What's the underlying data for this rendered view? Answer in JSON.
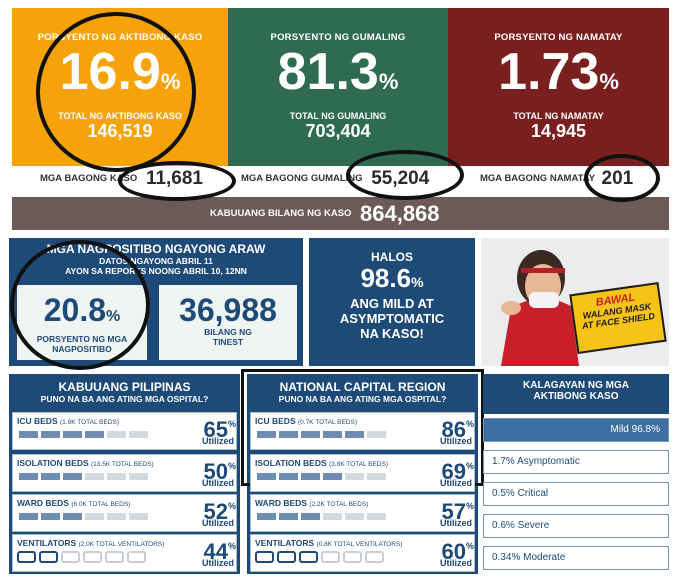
{
  "cards": {
    "active": {
      "label": "PORSYENTO NG AKTIBONG KASO",
      "pct": "16.9",
      "pct_sym": "%",
      "sub": "TOTAL NG AKTIBONG KASO",
      "num": "146,519",
      "color": "#f5a20b"
    },
    "recovered": {
      "label": "PORSYENTO NG GUMALING",
      "pct": "81.3",
      "pct_sym": "%",
      "sub": "TOTAL NG GUMALING",
      "num": "703,404",
      "color": "#2e6b52"
    },
    "deaths": {
      "label": "PORSYENTO NG NAMATAY",
      "pct": "1.73",
      "pct_sym": "%",
      "sub": "TOTAL NG NAMATAY",
      "num": "14,945",
      "color": "#7a1f1f"
    }
  },
  "new": {
    "cases_label": "MGA BAGONG KASO",
    "cases": "11,681",
    "recovered_label": "MGA BAGONG GUMALING",
    "recovered": "55,204",
    "deaths_label": "MGA BAGONG NAMATAY",
    "deaths": "201"
  },
  "total": {
    "label": "KABUUANG BILANG NG KASO",
    "value": "864,868"
  },
  "positivity": {
    "title": "MGA NAGPOSITIBO NGAYONG ARAW",
    "line1": "DATOS NGAYONG ABRIL 11",
    "line2": "AYON SA REPORTS NOONG ABRIL 10, 12NN",
    "rate": "20.8",
    "rate_sym": "%",
    "rate_label1": "PORSYENTO NG MGA",
    "rate_label2": "NAGPOSITIBO",
    "tests": "36,988",
    "tests_label1": "BILANG NG",
    "tests_label2": "TINEST"
  },
  "mild": {
    "l1": "HALOS",
    "value": "98.6",
    "sym": "%",
    "l2": "ANG MILD AT",
    "l3": "ASYMPTOMATIC",
    "l4": "NA KASO!"
  },
  "banner": {
    "l1": "BAWAL",
    "l2": "WALANG MASK",
    "l3": "AT FACE SHIELD"
  },
  "ph": {
    "title": "KABUUANG PILIPINAS",
    "subtitle": "PUNO NA BA ANG ATING MGA OSPITAL?",
    "rows": [
      {
        "name": "ICU BEDS",
        "cap": "(1.9K TOTAL BEDS)",
        "pct": "65",
        "filled": 4
      },
      {
        "name": "ISOLATION BEDS",
        "cap": "(13.5K TOTAL BEDS)",
        "pct": "50",
        "filled": 3
      },
      {
        "name": "WARD BEDS",
        "cap": "(6.0K TOTAL BEDS)",
        "pct": "52",
        "filled": 3
      },
      {
        "name": "VENTILATORS",
        "cap": "(2.0K TOTAL VENTILATORS)",
        "pct": "44",
        "filled": 2
      }
    ]
  },
  "ncr": {
    "title": "NATIONAL CAPITAL REGION",
    "subtitle": "PUNO NA BA ANG ATING MGA OSPITAL?",
    "rows": [
      {
        "name": "ICU BEDS",
        "cap": "(0.7K TOTAL BEDS)",
        "pct": "86",
        "filled": 5
      },
      {
        "name": "ISOLATION BEDS",
        "cap": "(3.8K TOTAL BEDS)",
        "pct": "69",
        "filled": 4
      },
      {
        "name": "WARD BEDS",
        "cap": "(2.2K TOTAL BEDS)",
        "pct": "57",
        "filled": 3
      },
      {
        "name": "VENTILATORS",
        "cap": "(0.8K TOTAL VENTILATORS)",
        "pct": "60",
        "filled": 3
      }
    ]
  },
  "util_label": "Utilized",
  "util_sym": "%",
  "status": {
    "title1": "KALAGAYAN NG MGA",
    "title2": "AKTIBONG KASO",
    "items": [
      {
        "label": "Mild 96.8%",
        "fraction": 0.968
      },
      {
        "label": "1.7% Asymptomatic",
        "fraction": 0.017
      },
      {
        "label": "0.5% Critical",
        "fraction": 0.005
      },
      {
        "label": "0.6% Severe",
        "fraction": 0.006
      },
      {
        "label": "0.34% Moderate",
        "fraction": 0.0034
      }
    ]
  }
}
